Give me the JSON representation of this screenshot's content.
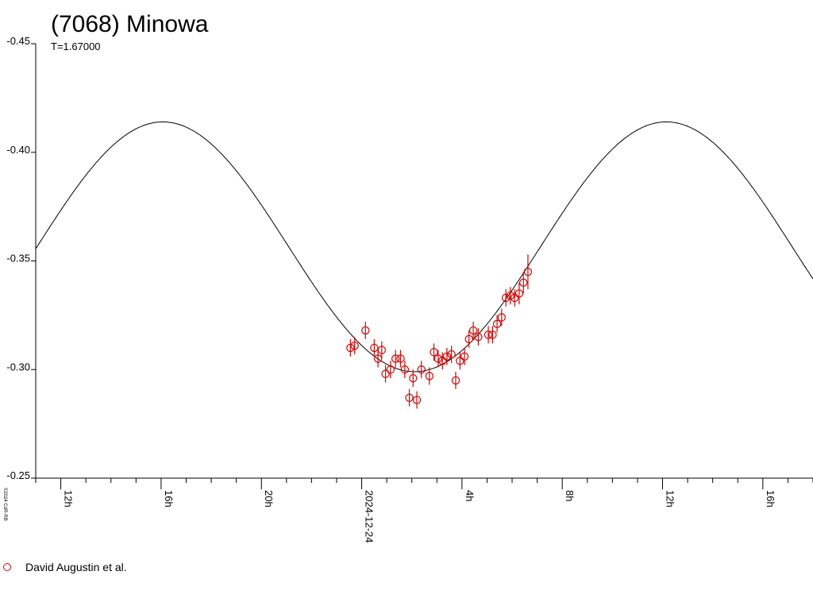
{
  "chart_data": {
    "type": "scatter",
    "title": "(7068) Minowa",
    "subtitle": "T=1.67000",
    "y_inverted": true,
    "ylim": [
      -0.45,
      -0.25
    ],
    "y_ticks": [
      "-0.45",
      "-0.40",
      "-0.35",
      "-0.30",
      "-0.25"
    ],
    "x_unit": "hours relative to 2024-12-24 00:00",
    "xlim": [
      -13,
      18
    ],
    "x_ticks": [
      {
        "hour": -12,
        "label": "12h"
      },
      {
        "hour": -8,
        "label": "16h"
      },
      {
        "hour": -4,
        "label": "20h"
      },
      {
        "hour": 0,
        "label": "2024-12-24"
      },
      {
        "hour": 4,
        "label": "4h"
      },
      {
        "hour": 8,
        "label": "8h"
      },
      {
        "hour": 12,
        "label": "12h"
      },
      {
        "hour": 16,
        "label": "16h"
      }
    ],
    "credit": "©2024 CdR-RB",
    "model_curve": {
      "period_hours": 20.08,
      "mean": -0.3565,
      "amplitude": 0.0575,
      "max_brightness_hour": -7.93
    },
    "series": [
      {
        "name": "David Augustin et al.",
        "color": "#dd0000",
        "points": [
          {
            "x": -0.45,
            "y": -0.31,
            "err": 0.004
          },
          {
            "x": -0.28,
            "y": -0.311,
            "err": 0.004
          },
          {
            "x": 0.15,
            "y": -0.318,
            "err": 0.004
          },
          {
            "x": 0.5,
            "y": -0.31,
            "err": 0.004
          },
          {
            "x": 0.65,
            "y": -0.305,
            "err": 0.004
          },
          {
            "x": 0.8,
            "y": -0.309,
            "err": 0.004
          },
          {
            "x": 0.95,
            "y": -0.298,
            "err": 0.004
          },
          {
            "x": 1.15,
            "y": -0.3,
            "err": 0.004
          },
          {
            "x": 1.35,
            "y": -0.305,
            "err": 0.004
          },
          {
            "x": 1.55,
            "y": -0.305,
            "err": 0.004
          },
          {
            "x": 1.72,
            "y": -0.3,
            "err": 0.004
          },
          {
            "x": 1.9,
            "y": -0.287,
            "err": 0.004
          },
          {
            "x": 2.05,
            "y": -0.296,
            "err": 0.004
          },
          {
            "x": 2.2,
            "y": -0.286,
            "err": 0.004
          },
          {
            "x": 2.38,
            "y": -0.3,
            "err": 0.004
          },
          {
            "x": 2.7,
            "y": -0.297,
            "err": 0.004
          },
          {
            "x": 2.88,
            "y": -0.308,
            "err": 0.004
          },
          {
            "x": 3.05,
            "y": -0.305,
            "err": 0.004
          },
          {
            "x": 3.22,
            "y": -0.304,
            "err": 0.004
          },
          {
            "x": 3.4,
            "y": -0.306,
            "err": 0.004
          },
          {
            "x": 3.58,
            "y": -0.307,
            "err": 0.004
          },
          {
            "x": 3.75,
            "y": -0.295,
            "err": 0.004
          },
          {
            "x": 3.92,
            "y": -0.304,
            "err": 0.004
          },
          {
            "x": 4.1,
            "y": -0.306,
            "err": 0.004
          },
          {
            "x": 4.28,
            "y": -0.314,
            "err": 0.004
          },
          {
            "x": 4.45,
            "y": -0.318,
            "err": 0.004
          },
          {
            "x": 4.65,
            "y": -0.315,
            "err": 0.004
          },
          {
            "x": 5.05,
            "y": -0.316,
            "err": 0.004
          },
          {
            "x": 5.22,
            "y": -0.316,
            "err": 0.004
          },
          {
            "x": 5.4,
            "y": -0.321,
            "err": 0.004
          },
          {
            "x": 5.58,
            "y": -0.324,
            "err": 0.004
          },
          {
            "x": 5.75,
            "y": -0.333,
            "err": 0.004
          },
          {
            "x": 5.93,
            "y": -0.334,
            "err": 0.004
          },
          {
            "x": 6.1,
            "y": -0.333,
            "err": 0.004
          },
          {
            "x": 6.28,
            "y": -0.335,
            "err": 0.005
          },
          {
            "x": 6.45,
            "y": -0.34,
            "err": 0.005
          },
          {
            "x": 6.63,
            "y": -0.345,
            "err": 0.008
          }
        ]
      }
    ]
  }
}
